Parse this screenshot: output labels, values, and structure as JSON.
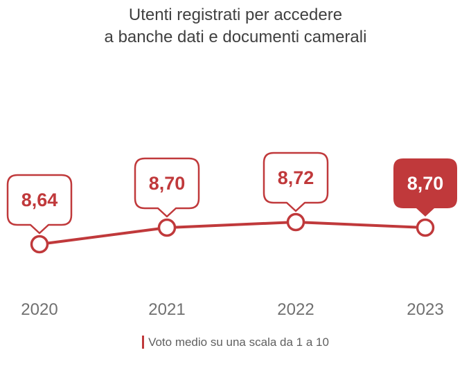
{
  "title": {
    "line1": "Utenti registrati per accedere",
    "line2": "a banche dati e documenti camerali"
  },
  "footer": {
    "note": "Voto medio su una scala da 1 a 10"
  },
  "colors": {
    "accent": "#c0393b",
    "text": "#404040",
    "axis_text": "#707070"
  },
  "chart_data": {
    "type": "line",
    "title": "Utenti registrati per accedere a banche dati e documenti camerali",
    "categories": [
      "2020",
      "2021",
      "2022",
      "2023"
    ],
    "values": [
      8.64,
      8.7,
      8.72,
      8.7
    ],
    "data_labels": [
      "8,64",
      "8,70",
      "8,72",
      "8,70"
    ],
    "highlighted_index": 3,
    "legend": "Voto medio su una scala da 1 a 10",
    "grid": false
  }
}
